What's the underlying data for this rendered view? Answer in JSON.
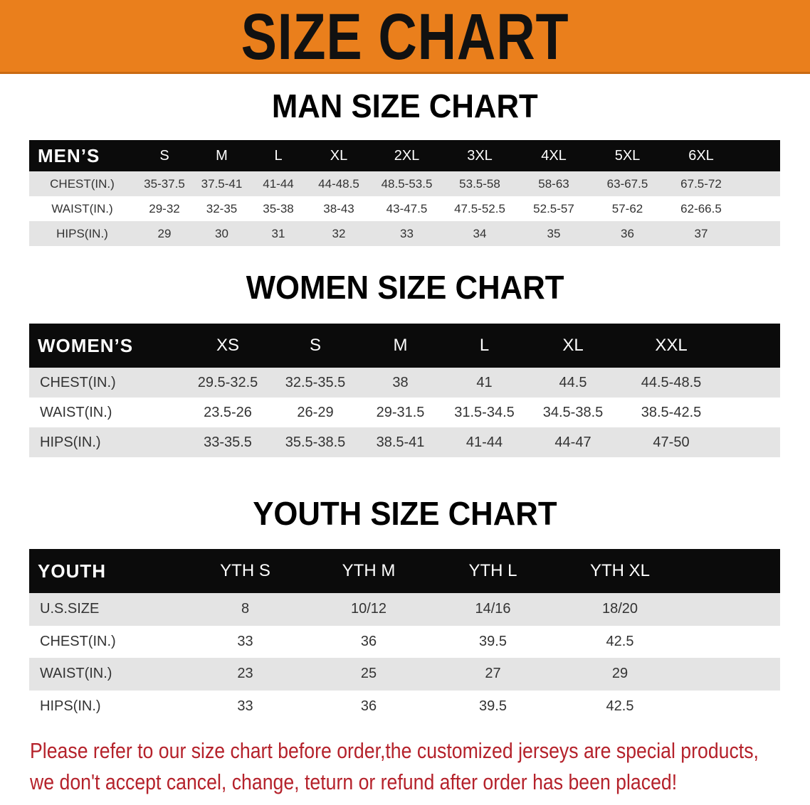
{
  "banner_title": "SIZE CHART",
  "colors": {
    "banner": "#ea7f1c",
    "header": "#0b0b0b",
    "note": "#b5222b"
  },
  "men": {
    "title": "MAN SIZE CHART",
    "header": [
      "MEN’S",
      "S",
      "M",
      "L",
      "XL",
      "2XL",
      "3XL",
      "4XL",
      "5XL",
      "6XL"
    ],
    "rows": [
      [
        "CHEST(IN.)",
        "35-37.5",
        "37.5-41",
        "41-44",
        "44-48.5",
        "48.5-53.5",
        "53.5-58",
        "58-63",
        "63-67.5",
        "67.5-72"
      ],
      [
        "WAIST(IN.)",
        "29-32",
        "32-35",
        "35-38",
        "38-43",
        "43-47.5",
        "47.5-52.5",
        "52.5-57",
        "57-62",
        "62-66.5"
      ],
      [
        "HIPS(IN.)",
        "29",
        "30",
        "31",
        "32",
        "33",
        "34",
        "35",
        "36",
        "37"
      ]
    ]
  },
  "women": {
    "title": "WOMEN SIZE CHART",
    "header": [
      "WOMEN’S",
      "XS",
      "S",
      "M",
      "L",
      "XL",
      "XXL"
    ],
    "rows": [
      [
        "CHEST(IN.)",
        "29.5-32.5",
        "32.5-35.5",
        "38",
        "41",
        "44.5",
        "44.5-48.5"
      ],
      [
        "WAIST(IN.)",
        "23.5-26",
        "26-29",
        "29-31.5",
        "31.5-34.5",
        "34.5-38.5",
        "38.5-42.5"
      ],
      [
        "HIPS(IN.)",
        "33-35.5",
        "35.5-38.5",
        "38.5-41",
        "41-44",
        "44-47",
        "47-50"
      ]
    ]
  },
  "youth": {
    "title": "YOUTH SIZE CHART",
    "header": [
      "YOUTH",
      "YTH S",
      "YTH M",
      "YTH L",
      "YTH XL"
    ],
    "rows": [
      [
        "U.S.SIZE",
        "8",
        "10/12",
        "14/16",
        "18/20"
      ],
      [
        "CHEST(IN.)",
        "33",
        "36",
        "39.5",
        "42.5"
      ],
      [
        "WAIST(IN.)",
        "23",
        "25",
        "27",
        "29"
      ],
      [
        "HIPS(IN.)",
        "33",
        "36",
        "39.5",
        "42.5"
      ]
    ]
  },
  "note": {
    "line1": "Please refer to our size chart before order,the customized jerseys are special products,",
    "line2": "we don't accept cancel, change, teturn or refund after order has been placed!"
  }
}
